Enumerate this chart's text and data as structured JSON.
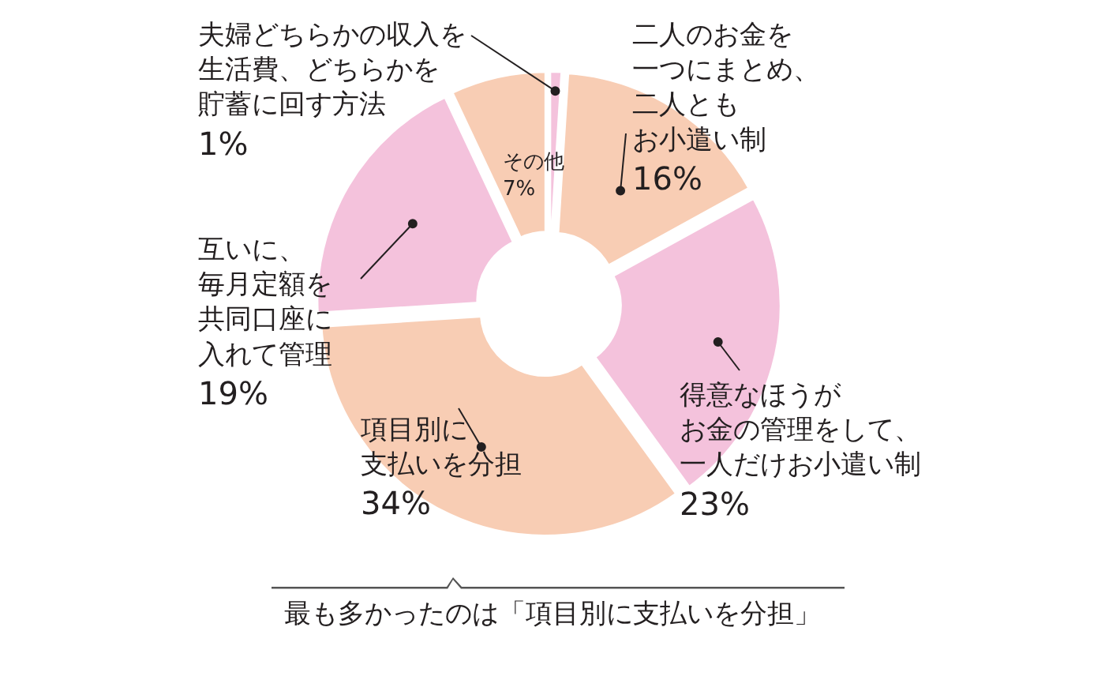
{
  "chart_data": {
    "type": "donut",
    "categories": [
      "夫婦どちらかの収入を生活費、どちらかを貯蓄に回す方法",
      "二人のお金を一つにまとめ、二人ともお小遣い制",
      "得意なほうがお金の管理をして、一人だけお小遣い制",
      "項目別に支払いを分担",
      "互いに、毎月定額を共同口座に入れて管理",
      "その他"
    ],
    "values": [
      1,
      16,
      23,
      34,
      19,
      7
    ],
    "value_labels": [
      "1%",
      "16%",
      "23%",
      "34%",
      "19%",
      "7%"
    ],
    "colors": [
      "#f4c2dc",
      "#f8cdb4",
      "#f4c2dc",
      "#f8cdb4",
      "#f4c2dc",
      "#f8cdb4"
    ],
    "annotations": [
      "最も多かったのは「項目別に支払いを分担」"
    ]
  }
}
